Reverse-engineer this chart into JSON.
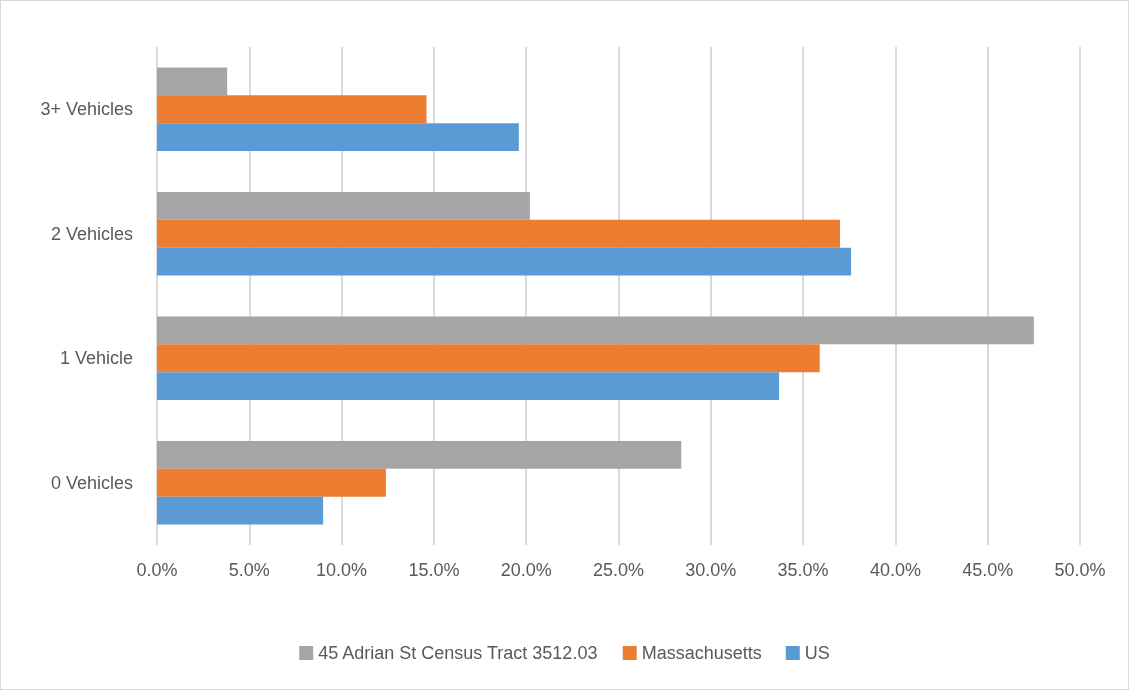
{
  "chart_data": {
    "type": "bar",
    "orientation": "horizontal",
    "categories": [
      "3+ Vehicles",
      "2 Vehicles",
      "1 Vehicle",
      "0 Vehicles"
    ],
    "series": [
      {
        "name": "45 Adrian St Census Tract 3512.03",
        "color": "#a5a5a5",
        "values": [
          3.8,
          20.2,
          47.5,
          28.4
        ]
      },
      {
        "name": "Massachusetts",
        "color": "#ed7d31",
        "values": [
          14.6,
          37.0,
          35.9,
          12.4
        ]
      },
      {
        "name": "US",
        "color": "#5b9bd5",
        "values": [
          19.6,
          37.6,
          33.7,
          9.0
        ]
      }
    ],
    "xlim": [
      0,
      50
    ],
    "xticks": [
      {
        "value": 0,
        "label": "0.0%"
      },
      {
        "value": 5,
        "label": "5.0%"
      },
      {
        "value": 10,
        "label": "10.0%"
      },
      {
        "value": 15,
        "label": "15.0%"
      },
      {
        "value": 20,
        "label": "20.0%"
      },
      {
        "value": 25,
        "label": "25.0%"
      },
      {
        "value": 30,
        "label": "30.0%"
      },
      {
        "value": 35,
        "label": "35.0%"
      },
      {
        "value": 40,
        "label": "40.0%"
      },
      {
        "value": 45,
        "label": "45.0%"
      },
      {
        "value": 50,
        "label": "50.0%"
      }
    ],
    "grid": "x",
    "legend": "bottom"
  }
}
